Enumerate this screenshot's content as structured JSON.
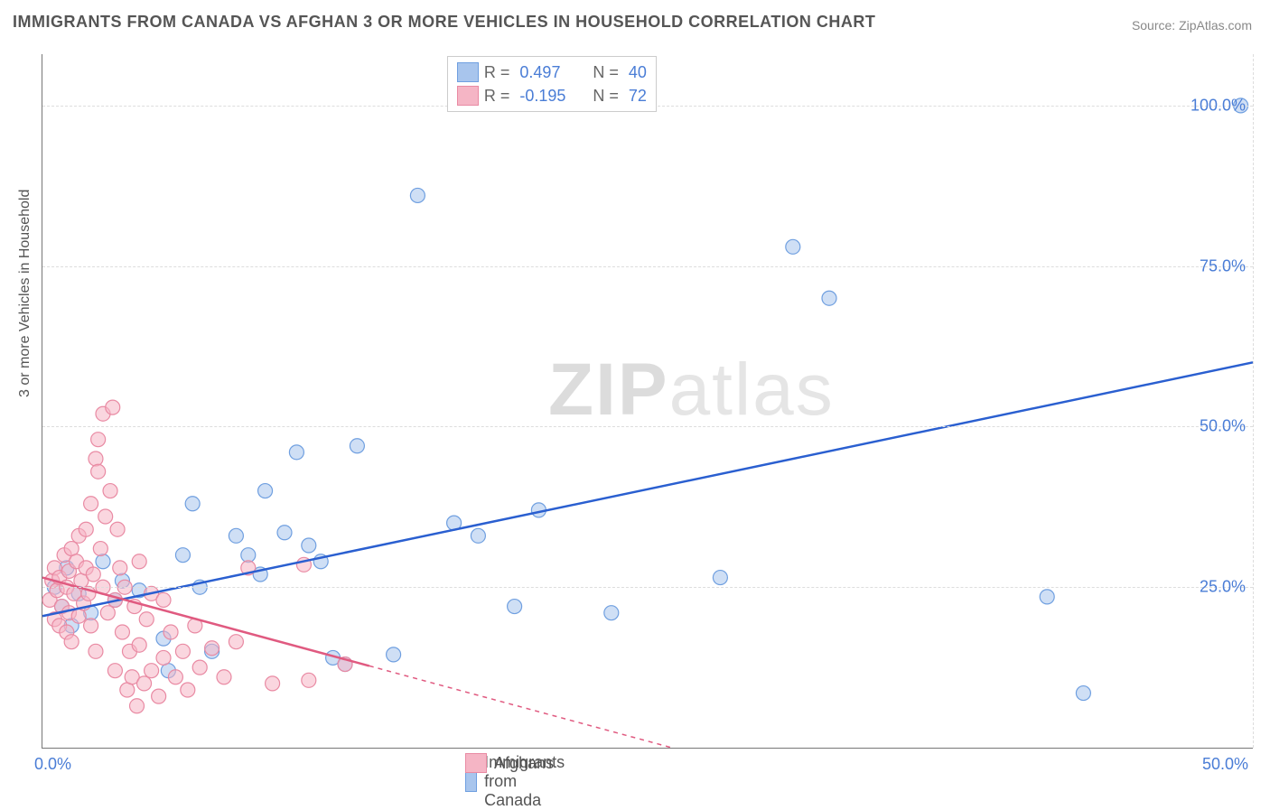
{
  "title": "IMMIGRANTS FROM CANADA VS AFGHAN 3 OR MORE VEHICLES IN HOUSEHOLD CORRELATION CHART",
  "source_label": "Source: ",
  "source_name": "ZipAtlas.com",
  "watermark_a": "ZIP",
  "watermark_b": "atlas",
  "chart": {
    "type": "scatter",
    "xlim": [
      0,
      50
    ],
    "ylim": [
      0,
      108
    ],
    "x_ticks": [
      {
        "v": 0,
        "label": "0.0%"
      },
      {
        "v": 50,
        "label": "50.0%"
      }
    ],
    "y_ticks": [
      {
        "v": 25,
        "label": "25.0%"
      },
      {
        "v": 50,
        "label": "50.0%"
      },
      {
        "v": 75,
        "label": "75.0%"
      },
      {
        "v": 100,
        "label": "100.0%"
      }
    ],
    "y_axis_title": "3 or more Vehicles in Household",
    "grid_color": "#dddddd",
    "background_color": "#ffffff",
    "marker_radius": 8,
    "marker_stroke_width": 1.2,
    "trend_line_width": 2.5,
    "trend_dash_width": 1.5,
    "series": [
      {
        "name": "Immigrants from Canada",
        "fill": "#a8c5ed",
        "stroke": "#6f9fe0",
        "fill_opacity": 0.55,
        "trend_color": "#2a5fd0",
        "trend": {
          "x1": 0,
          "y1": 20.5,
          "x2": 50,
          "y2": 60,
          "solid_until_x": 50
        },
        "R": "0.497",
        "N": "40",
        "points": [
          [
            0.5,
            25
          ],
          [
            0.8,
            22
          ],
          [
            1.0,
            28
          ],
          [
            1.2,
            19
          ],
          [
            1.5,
            24
          ],
          [
            2.0,
            21
          ],
          [
            2.5,
            29
          ],
          [
            3.0,
            23
          ],
          [
            3.3,
            26
          ],
          [
            4.0,
            24.5
          ],
          [
            5.0,
            17
          ],
          [
            5.2,
            12
          ],
          [
            5.8,
            30
          ],
          [
            6.2,
            38
          ],
          [
            6.5,
            25
          ],
          [
            7.0,
            15
          ],
          [
            8.0,
            33
          ],
          [
            8.5,
            30
          ],
          [
            9.0,
            27
          ],
          [
            9.2,
            40
          ],
          [
            10.0,
            33.5
          ],
          [
            10.5,
            46
          ],
          [
            11.0,
            31.5
          ],
          [
            11.5,
            29
          ],
          [
            12.0,
            14
          ],
          [
            12.5,
            13
          ],
          [
            13.0,
            47
          ],
          [
            14.5,
            14.5
          ],
          [
            15.5,
            86
          ],
          [
            17.0,
            35
          ],
          [
            18.0,
            33
          ],
          [
            19.5,
            22
          ],
          [
            20.5,
            37
          ],
          [
            23.5,
            21
          ],
          [
            28.0,
            26.5
          ],
          [
            31.0,
            78
          ],
          [
            32.5,
            70
          ],
          [
            41.5,
            23.5
          ],
          [
            43.0,
            8.5
          ],
          [
            49.5,
            100
          ]
        ]
      },
      {
        "name": "Afghans",
        "fill": "#f5b5c5",
        "stroke": "#e98aa3",
        "fill_opacity": 0.55,
        "trend_color": "#e05a80",
        "trend": {
          "x1": 0,
          "y1": 26.5,
          "x2": 26,
          "y2": 0,
          "solid_until_x": 13.5
        },
        "R": "-0.195",
        "N": "72",
        "points": [
          [
            0.3,
            23
          ],
          [
            0.4,
            26
          ],
          [
            0.5,
            20
          ],
          [
            0.5,
            28
          ],
          [
            0.6,
            24.5
          ],
          [
            0.7,
            19
          ],
          [
            0.7,
            26.5
          ],
          [
            0.8,
            22
          ],
          [
            0.9,
            30
          ],
          [
            1.0,
            18
          ],
          [
            1.0,
            25
          ],
          [
            1.1,
            21
          ],
          [
            1.1,
            27.5
          ],
          [
            1.2,
            16.5
          ],
          [
            1.2,
            31
          ],
          [
            1.3,
            24
          ],
          [
            1.4,
            29
          ],
          [
            1.5,
            20.5
          ],
          [
            1.5,
            33
          ],
          [
            1.6,
            26
          ],
          [
            1.7,
            22.5
          ],
          [
            1.8,
            28
          ],
          [
            1.8,
            34
          ],
          [
            1.9,
            24
          ],
          [
            2.0,
            38
          ],
          [
            2.0,
            19
          ],
          [
            2.1,
            27
          ],
          [
            2.2,
            45
          ],
          [
            2.2,
            15
          ],
          [
            2.3,
            43
          ],
          [
            2.3,
            48
          ],
          [
            2.4,
            31
          ],
          [
            2.5,
            52
          ],
          [
            2.5,
            25
          ],
          [
            2.6,
            36
          ],
          [
            2.7,
            21
          ],
          [
            2.8,
            40
          ],
          [
            2.9,
            53
          ],
          [
            3.0,
            23
          ],
          [
            3.0,
            12
          ],
          [
            3.1,
            34
          ],
          [
            3.2,
            28
          ],
          [
            3.3,
            18
          ],
          [
            3.4,
            25
          ],
          [
            3.5,
            9
          ],
          [
            3.6,
            15
          ],
          [
            3.7,
            11
          ],
          [
            3.8,
            22
          ],
          [
            3.9,
            6.5
          ],
          [
            4.0,
            16
          ],
          [
            4.0,
            29
          ],
          [
            4.2,
            10
          ],
          [
            4.3,
            20
          ],
          [
            4.5,
            12
          ],
          [
            4.5,
            24
          ],
          [
            4.8,
            8
          ],
          [
            5.0,
            14
          ],
          [
            5.0,
            23
          ],
          [
            5.3,
            18
          ],
          [
            5.5,
            11
          ],
          [
            5.8,
            15
          ],
          [
            6.0,
            9
          ],
          [
            6.3,
            19
          ],
          [
            6.5,
            12.5
          ],
          [
            7.0,
            15.5
          ],
          [
            7.5,
            11
          ],
          [
            8.0,
            16.5
          ],
          [
            8.5,
            28
          ],
          [
            9.5,
            10
          ],
          [
            10.8,
            28.5
          ],
          [
            11.0,
            10.5
          ],
          [
            12.5,
            13
          ]
        ]
      }
    ],
    "legend_top": {
      "rows": [
        {
          "swatch_fill": "#a8c5ed",
          "swatch_stroke": "#6f9fe0",
          "R": "0.497",
          "N": "40"
        },
        {
          "swatch_fill": "#f5b5c5",
          "swatch_stroke": "#e98aa3",
          "R": "-0.195",
          "N": "72"
        }
      ],
      "labels": {
        "R": "R",
        "N": "N",
        "eq": "="
      }
    },
    "legend_bottom": [
      {
        "swatch_fill": "#a8c5ed",
        "swatch_stroke": "#6f9fe0",
        "label": "Immigrants from Canada"
      },
      {
        "swatch_fill": "#f5b5c5",
        "swatch_stroke": "#e98aa3",
        "label": "Afghans"
      }
    ]
  }
}
